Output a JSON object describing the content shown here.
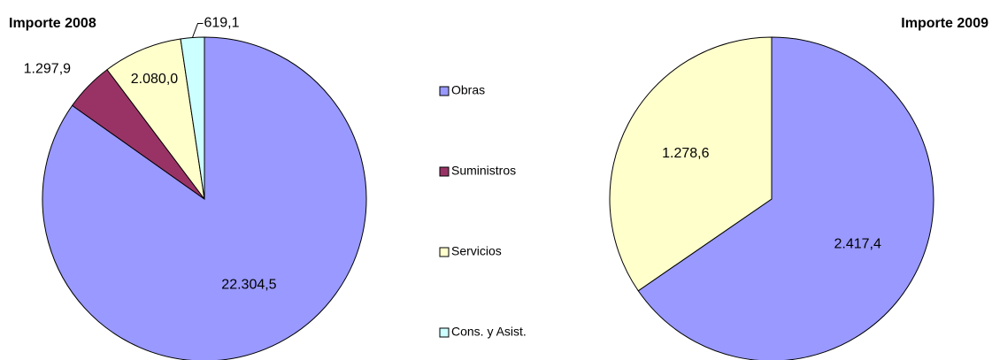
{
  "chart_data": [
    {
      "type": "pie",
      "title": "Importe 2008",
      "categories": [
        "Obras",
        "Suministros",
        "Servicios",
        "Cons. y Asist."
      ],
      "values": [
        22304.5,
        1297.9,
        2080.0,
        619.1
      ],
      "value_labels": [
        "22.304,5",
        "1.297,9",
        "2.080,0",
        "619,1"
      ],
      "colors": [
        "#9999ff",
        "#993366",
        "#ffffcc",
        "#ccffff"
      ],
      "legend": "center"
    },
    {
      "type": "pie",
      "title": "Importe 2009",
      "categories": [
        "Obras",
        "Servicios"
      ],
      "values": [
        2417.4,
        1278.6
      ],
      "value_labels": [
        "2.417,4",
        "1.278,6"
      ],
      "colors": [
        "#9999ff",
        "#ffffcc"
      ]
    }
  ]
}
